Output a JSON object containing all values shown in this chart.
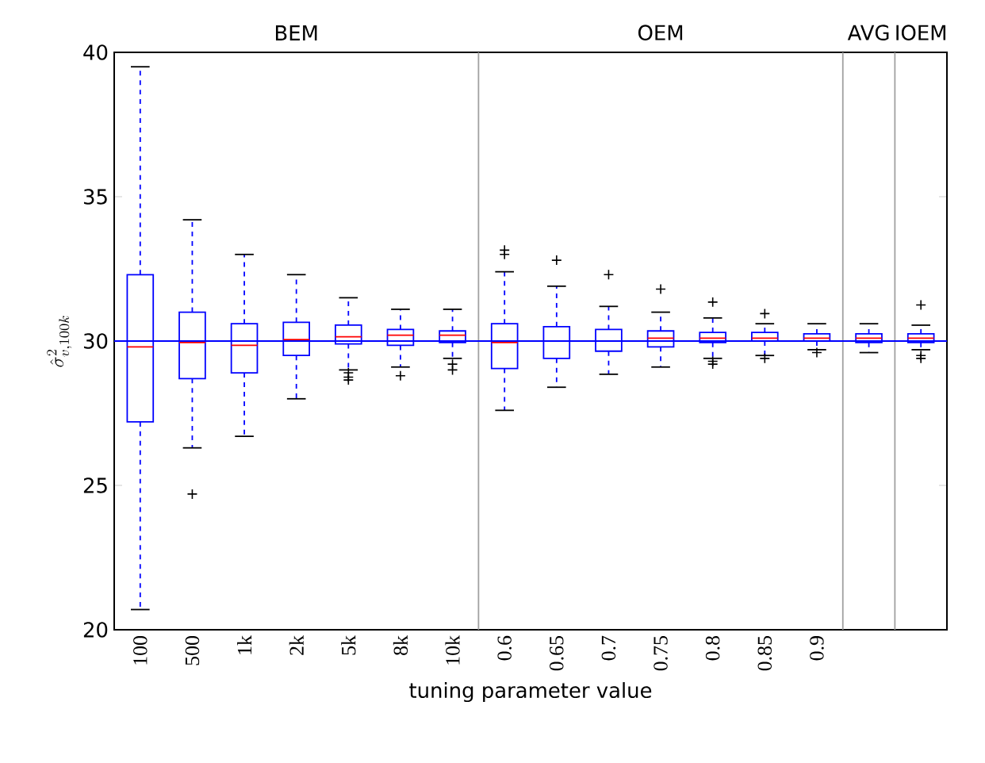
{
  "chart_data": {
    "type": "box",
    "xlabel": "tuning parameter value",
    "ylabel": "\\hat{\\sigma}^{2}_{v,100k}",
    "categories": [
      "100",
      "500",
      "1k",
      "2k",
      "5k",
      "8k",
      "10k",
      "0.6",
      "0.65",
      "0.7",
      "0.75",
      "0.8",
      "0.85",
      "0.9",
      null,
      null
    ],
    "color": "#0000ff",
    "boxes": [
      {
        "low": 20.7,
        "q1": 27.2,
        "median": 29.8,
        "q3": 32.3,
        "high": 39.5
      },
      {
        "low": 26.3,
        "q1": 28.7,
        "median": 29.95,
        "q3": 31.0,
        "high": 34.2,
        "outliers": [
          24.7
        ]
      },
      {
        "low": 26.7,
        "q1": 28.9,
        "median": 29.85,
        "q3": 30.6,
        "high": 33.0
      },
      {
        "low": 28.0,
        "q1": 29.5,
        "median": 30.05,
        "q3": 30.65,
        "high": 32.3
      },
      {
        "low": 29.0,
        "q1": 29.9,
        "median": 30.15,
        "q3": 30.55,
        "high": 31.5,
        "outliers": [
          28.9,
          28.75,
          28.65
        ]
      },
      {
        "low": 29.1,
        "q1": 29.85,
        "median": 30.2,
        "q3": 30.4,
        "high": 31.1,
        "outliers": [
          28.8
        ]
      },
      {
        "low": 29.4,
        "q1": 29.95,
        "median": 30.2,
        "q3": 30.35,
        "high": 31.1,
        "outliers": [
          29.2,
          29.0
        ]
      },
      {
        "low": 27.6,
        "q1": 29.05,
        "median": 29.95,
        "q3": 30.6,
        "high": 32.4,
        "outliers": [
          33.0,
          33.15
        ]
      },
      {
        "low": 28.4,
        "q1": 29.4,
        "median": 30.0,
        "q3": 30.5,
        "high": 31.9,
        "outliers": [
          32.8
        ]
      },
      {
        "low": 28.85,
        "q1": 29.65,
        "median": 30.0,
        "q3": 30.4,
        "high": 31.2,
        "outliers": [
          32.3
        ]
      },
      {
        "low": 29.1,
        "q1": 29.8,
        "median": 30.1,
        "q3": 30.35,
        "high": 31.0,
        "outliers": [
          31.8
        ]
      },
      {
        "low": 29.4,
        "q1": 29.95,
        "median": 30.1,
        "q3": 30.3,
        "high": 30.8,
        "outliers": [
          31.35,
          29.3,
          29.2
        ]
      },
      {
        "low": 29.5,
        "q1": 30.0,
        "median": 30.1,
        "q3": 30.3,
        "high": 30.6,
        "outliers": [
          30.95,
          29.4
        ]
      },
      {
        "low": 29.7,
        "q1": 30.0,
        "median": 30.1,
        "q3": 30.25,
        "high": 30.6,
        "outliers": [
          29.6
        ]
      },
      {
        "low": 29.6,
        "q1": 29.95,
        "median": 30.1,
        "q3": 30.25,
        "high": 30.6
      },
      {
        "low": 29.7,
        "q1": 29.95,
        "median": 30.1,
        "q3": 30.25,
        "high": 30.55,
        "outliers": [
          31.25,
          29.5,
          29.4
        ]
      }
    ],
    "ylim": [
      20,
      40
    ],
    "yticks": [
      20,
      25,
      30,
      35,
      40
    ],
    "ref_lines": [
      {
        "axis": "y",
        "value": 30,
        "color": "#0000ff"
      }
    ],
    "annotations": [
      "BEM",
      "OEM",
      "AVG",
      "IOEM"
    ]
  }
}
